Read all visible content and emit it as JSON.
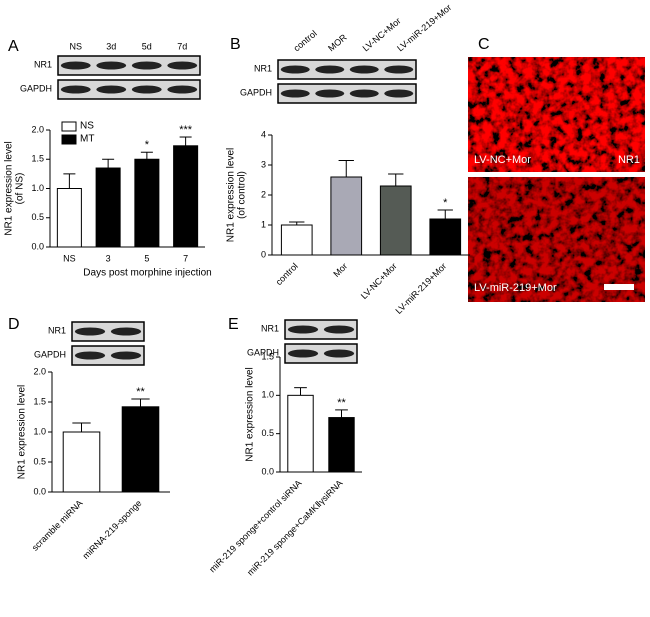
{
  "chart_data": [
    {
      "type": "bar",
      "panel": "A",
      "blot": {
        "lanes": [
          "NS",
          "3d",
          "5d",
          "7d"
        ],
        "rows": [
          "NR1",
          "GAPDH"
        ]
      },
      "categories": [
        "NS",
        "3",
        "5",
        "7"
      ],
      "series": [
        {
          "name": "NS",
          "color": "#ffffff",
          "values": [
            1.0,
            null,
            null,
            null
          ],
          "errors": [
            0.25,
            null,
            null,
            null
          ]
        },
        {
          "name": "MT",
          "color": "#000000",
          "values": [
            null,
            1.35,
            1.5,
            1.73
          ],
          "errors": [
            null,
            0.15,
            0.12,
            0.15
          ]
        }
      ],
      "significance": [
        null,
        null,
        "*",
        "***"
      ],
      "ylabel": [
        "NR1 expression level",
        "(of NS)"
      ],
      "xlabel": "Days post morphine injection",
      "ylim": [
        0,
        2.0
      ],
      "yticks": [
        {
          "value": 0,
          "label": "0.0"
        },
        0.5,
        {
          "value": 1,
          "label": "1.0"
        },
        1.5,
        {
          "value": 2,
          "label": "2.0"
        }
      ],
      "legend": "top-left"
    },
    {
      "type": "bar",
      "panel": "B",
      "blot": {
        "lanes": [
          "control",
          "MOR",
          "LV-NC+Mor",
          "LV-miR-219+Mor"
        ],
        "rows": [
          "NR1",
          "GAPDH"
        ]
      },
      "categories": [
        "control",
        "Mor",
        "LV-NC+Mor",
        "LV-miR-219+Mor"
      ],
      "series": [
        {
          "colors": [
            "#ffffff",
            "#a9a9b5",
            "#555b55",
            "#000000"
          ],
          "values": [
            1.0,
            2.6,
            2.3,
            1.2
          ],
          "errors": [
            0.1,
            0.55,
            0.4,
            0.3
          ]
        }
      ],
      "significance": [
        null,
        null,
        null,
        "*"
      ],
      "ylabel": [
        "NR1 expression level",
        "(of control)"
      ],
      "ylim": [
        0,
        4
      ],
      "yticks": [
        0,
        1,
        2,
        3,
        4
      ],
      "rotate_categories": true
    },
    {
      "type": "bar",
      "panel": "D",
      "blot": {
        "rows": [
          "NR1",
          "GAPDH"
        ]
      },
      "categories": [
        "scramble miRNA",
        "miRNA-219-sponge"
      ],
      "series": [
        {
          "colors": [
            "#ffffff",
            "#000000"
          ],
          "values": [
            1.0,
            1.42
          ],
          "errors": [
            0.15,
            0.13
          ]
        }
      ],
      "significance": [
        null,
        "**"
      ],
      "ylabel": [
        "NR1 expression level"
      ],
      "ylim": [
        0,
        2.0
      ],
      "yticks": [
        {
          "value": 0,
          "label": "0.0"
        },
        0.5,
        {
          "value": 1,
          "label": "1.0"
        },
        1.5,
        {
          "value": 2,
          "label": "2.0"
        }
      ],
      "rotate_categories": true
    },
    {
      "type": "bar",
      "panel": "E",
      "blot": {
        "rows": [
          "NR1",
          "GAPDH"
        ]
      },
      "categories": [
        "miR-219 sponge+control siRNA",
        "miR-219 sponge+CaMKⅡγsiRNA"
      ],
      "series": [
        {
          "colors": [
            "#ffffff",
            "#000000"
          ],
          "values": [
            1.0,
            0.71
          ],
          "errors": [
            0.1,
            0.1
          ]
        }
      ],
      "significance": [
        null,
        "**"
      ],
      "ylabel": [
        "NR1 expression level"
      ],
      "ylim": [
        0,
        1.5
      ],
      "yticks": [
        {
          "value": 0,
          "label": "0.0"
        },
        0.5,
        {
          "value": 1,
          "label": "1.0"
        },
        1.5
      ],
      "rotate_categories": true
    }
  ],
  "panel_c": {
    "label": "C",
    "images": [
      {
        "caption": "LV-NC+Mor",
        "marker": "NR1"
      },
      {
        "caption": "LV-miR-219+Mor"
      }
    ]
  }
}
